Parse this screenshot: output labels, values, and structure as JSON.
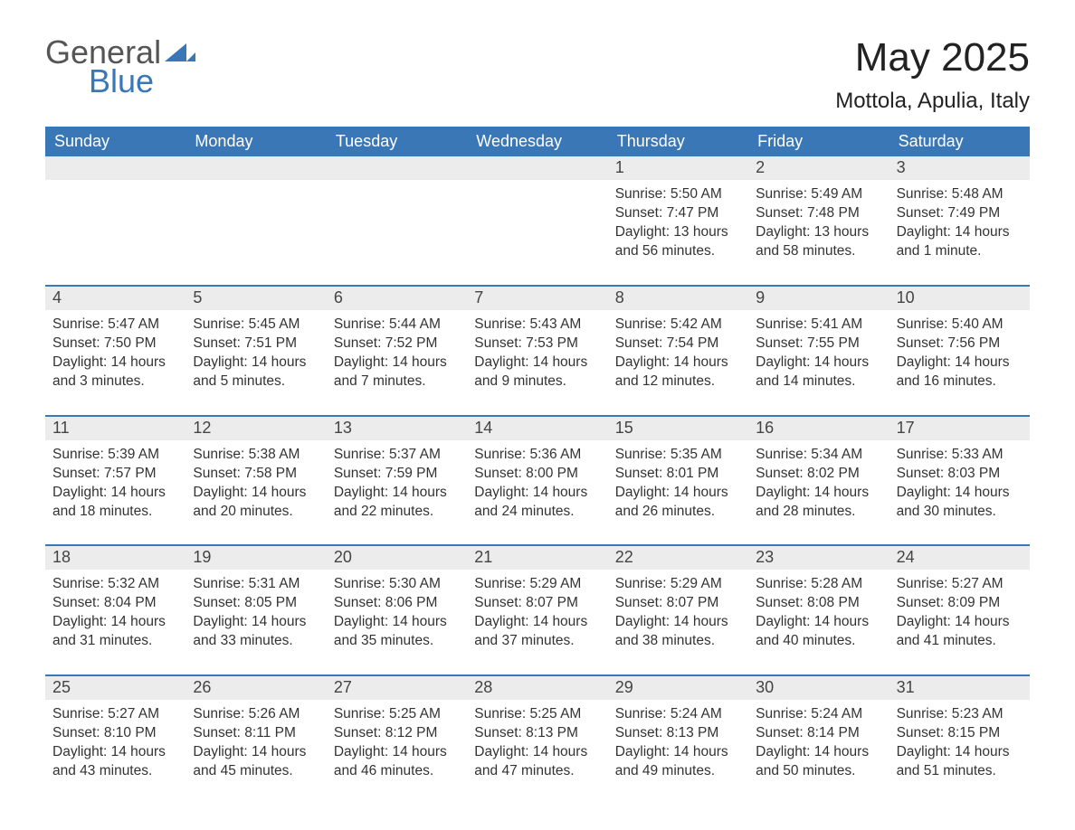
{
  "brand": {
    "word1": "General",
    "word2": "Blue",
    "color_general": "#555555",
    "color_blue": "#3a77b7",
    "icon_color": "#3a77b7"
  },
  "header": {
    "title": "May 2025",
    "location": "Mottola, Apulia, Italy"
  },
  "colors": {
    "header_bg": "#3a77b7",
    "header_text": "#ffffff",
    "daynum_bg": "#ececec",
    "text": "#333333",
    "week_border": "#3a77b7",
    "page_bg": "#ffffff"
  },
  "weekdays": [
    "Sunday",
    "Monday",
    "Tuesday",
    "Wednesday",
    "Thursday",
    "Friday",
    "Saturday"
  ],
  "weeks": [
    [
      {
        "day": "",
        "sunrise": "",
        "sunset": "",
        "daylight1": "",
        "daylight2": ""
      },
      {
        "day": "",
        "sunrise": "",
        "sunset": "",
        "daylight1": "",
        "daylight2": ""
      },
      {
        "day": "",
        "sunrise": "",
        "sunset": "",
        "daylight1": "",
        "daylight2": ""
      },
      {
        "day": "",
        "sunrise": "",
        "sunset": "",
        "daylight1": "",
        "daylight2": ""
      },
      {
        "day": "1",
        "sunrise": "Sunrise: 5:50 AM",
        "sunset": "Sunset: 7:47 PM",
        "daylight1": "Daylight: 13 hours",
        "daylight2": "and 56 minutes."
      },
      {
        "day": "2",
        "sunrise": "Sunrise: 5:49 AM",
        "sunset": "Sunset: 7:48 PM",
        "daylight1": "Daylight: 13 hours",
        "daylight2": "and 58 minutes."
      },
      {
        "day": "3",
        "sunrise": "Sunrise: 5:48 AM",
        "sunset": "Sunset: 7:49 PM",
        "daylight1": "Daylight: 14 hours",
        "daylight2": "and 1 minute."
      }
    ],
    [
      {
        "day": "4",
        "sunrise": "Sunrise: 5:47 AM",
        "sunset": "Sunset: 7:50 PM",
        "daylight1": "Daylight: 14 hours",
        "daylight2": "and 3 minutes."
      },
      {
        "day": "5",
        "sunrise": "Sunrise: 5:45 AM",
        "sunset": "Sunset: 7:51 PM",
        "daylight1": "Daylight: 14 hours",
        "daylight2": "and 5 minutes."
      },
      {
        "day": "6",
        "sunrise": "Sunrise: 5:44 AM",
        "sunset": "Sunset: 7:52 PM",
        "daylight1": "Daylight: 14 hours",
        "daylight2": "and 7 minutes."
      },
      {
        "day": "7",
        "sunrise": "Sunrise: 5:43 AM",
        "sunset": "Sunset: 7:53 PM",
        "daylight1": "Daylight: 14 hours",
        "daylight2": "and 9 minutes."
      },
      {
        "day": "8",
        "sunrise": "Sunrise: 5:42 AM",
        "sunset": "Sunset: 7:54 PM",
        "daylight1": "Daylight: 14 hours",
        "daylight2": "and 12 minutes."
      },
      {
        "day": "9",
        "sunrise": "Sunrise: 5:41 AM",
        "sunset": "Sunset: 7:55 PM",
        "daylight1": "Daylight: 14 hours",
        "daylight2": "and 14 minutes."
      },
      {
        "day": "10",
        "sunrise": "Sunrise: 5:40 AM",
        "sunset": "Sunset: 7:56 PM",
        "daylight1": "Daylight: 14 hours",
        "daylight2": "and 16 minutes."
      }
    ],
    [
      {
        "day": "11",
        "sunrise": "Sunrise: 5:39 AM",
        "sunset": "Sunset: 7:57 PM",
        "daylight1": "Daylight: 14 hours",
        "daylight2": "and 18 minutes."
      },
      {
        "day": "12",
        "sunrise": "Sunrise: 5:38 AM",
        "sunset": "Sunset: 7:58 PM",
        "daylight1": "Daylight: 14 hours",
        "daylight2": "and 20 minutes."
      },
      {
        "day": "13",
        "sunrise": "Sunrise: 5:37 AM",
        "sunset": "Sunset: 7:59 PM",
        "daylight1": "Daylight: 14 hours",
        "daylight2": "and 22 minutes."
      },
      {
        "day": "14",
        "sunrise": "Sunrise: 5:36 AM",
        "sunset": "Sunset: 8:00 PM",
        "daylight1": "Daylight: 14 hours",
        "daylight2": "and 24 minutes."
      },
      {
        "day": "15",
        "sunrise": "Sunrise: 5:35 AM",
        "sunset": "Sunset: 8:01 PM",
        "daylight1": "Daylight: 14 hours",
        "daylight2": "and 26 minutes."
      },
      {
        "day": "16",
        "sunrise": "Sunrise: 5:34 AM",
        "sunset": "Sunset: 8:02 PM",
        "daylight1": "Daylight: 14 hours",
        "daylight2": "and 28 minutes."
      },
      {
        "day": "17",
        "sunrise": "Sunrise: 5:33 AM",
        "sunset": "Sunset: 8:03 PM",
        "daylight1": "Daylight: 14 hours",
        "daylight2": "and 30 minutes."
      }
    ],
    [
      {
        "day": "18",
        "sunrise": "Sunrise: 5:32 AM",
        "sunset": "Sunset: 8:04 PM",
        "daylight1": "Daylight: 14 hours",
        "daylight2": "and 31 minutes."
      },
      {
        "day": "19",
        "sunrise": "Sunrise: 5:31 AM",
        "sunset": "Sunset: 8:05 PM",
        "daylight1": "Daylight: 14 hours",
        "daylight2": "and 33 minutes."
      },
      {
        "day": "20",
        "sunrise": "Sunrise: 5:30 AM",
        "sunset": "Sunset: 8:06 PM",
        "daylight1": "Daylight: 14 hours",
        "daylight2": "and 35 minutes."
      },
      {
        "day": "21",
        "sunrise": "Sunrise: 5:29 AM",
        "sunset": "Sunset: 8:07 PM",
        "daylight1": "Daylight: 14 hours",
        "daylight2": "and 37 minutes."
      },
      {
        "day": "22",
        "sunrise": "Sunrise: 5:29 AM",
        "sunset": "Sunset: 8:07 PM",
        "daylight1": "Daylight: 14 hours",
        "daylight2": "and 38 minutes."
      },
      {
        "day": "23",
        "sunrise": "Sunrise: 5:28 AM",
        "sunset": "Sunset: 8:08 PM",
        "daylight1": "Daylight: 14 hours",
        "daylight2": "and 40 minutes."
      },
      {
        "day": "24",
        "sunrise": "Sunrise: 5:27 AM",
        "sunset": "Sunset: 8:09 PM",
        "daylight1": "Daylight: 14 hours",
        "daylight2": "and 41 minutes."
      }
    ],
    [
      {
        "day": "25",
        "sunrise": "Sunrise: 5:27 AM",
        "sunset": "Sunset: 8:10 PM",
        "daylight1": "Daylight: 14 hours",
        "daylight2": "and 43 minutes."
      },
      {
        "day": "26",
        "sunrise": "Sunrise: 5:26 AM",
        "sunset": "Sunset: 8:11 PM",
        "daylight1": "Daylight: 14 hours",
        "daylight2": "and 45 minutes."
      },
      {
        "day": "27",
        "sunrise": "Sunrise: 5:25 AM",
        "sunset": "Sunset: 8:12 PM",
        "daylight1": "Daylight: 14 hours",
        "daylight2": "and 46 minutes."
      },
      {
        "day": "28",
        "sunrise": "Sunrise: 5:25 AM",
        "sunset": "Sunset: 8:13 PM",
        "daylight1": "Daylight: 14 hours",
        "daylight2": "and 47 minutes."
      },
      {
        "day": "29",
        "sunrise": "Sunrise: 5:24 AM",
        "sunset": "Sunset: 8:13 PM",
        "daylight1": "Daylight: 14 hours",
        "daylight2": "and 49 minutes."
      },
      {
        "day": "30",
        "sunrise": "Sunrise: 5:24 AM",
        "sunset": "Sunset: 8:14 PM",
        "daylight1": "Daylight: 14 hours",
        "daylight2": "and 50 minutes."
      },
      {
        "day": "31",
        "sunrise": "Sunrise: 5:23 AM",
        "sunset": "Sunset: 8:15 PM",
        "daylight1": "Daylight: 14 hours",
        "daylight2": "and 51 minutes."
      }
    ]
  ]
}
